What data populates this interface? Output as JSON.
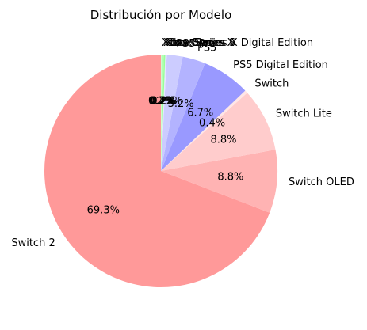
{
  "chart_data": {
    "type": "pie",
    "title": "Distribución por Modelo",
    "start_angle_deg": 90,
    "direction": "counterclockwise",
    "slices": [
      {
        "label": "Switch 2",
        "percent": 69.3,
        "pct_text": "69.3%",
        "color": "#ff9999"
      },
      {
        "label": "Switch OLED",
        "percent": 8.8,
        "pct_text": "8.8%",
        "color": "#ffb3b3"
      },
      {
        "label": "Switch Lite",
        "percent": 8.8,
        "pct_text": "8.8%",
        "color": "#ffcccc"
      },
      {
        "label": "Switch",
        "percent": 0.4,
        "pct_text": "0.4%",
        "color": "#ffe6e6"
      },
      {
        "label": "PS5 Digital Edition",
        "percent": 6.7,
        "pct_text": "6.7%",
        "color": "#9999ff"
      },
      {
        "label": "PS5",
        "percent": 3.2,
        "pct_text": "3.2%",
        "color": "#b3b3ff"
      },
      {
        "label": "PS5 Pro",
        "percent": 2.2,
        "pct_text": "2.2%",
        "color": "#ccccff"
      },
      {
        "label": "Xbox Series X Digital Edition",
        "percent": 0.2,
        "pct_text": "0.2%",
        "color": "#e6e6ff"
      },
      {
        "label": "Xbox Series S",
        "percent": 0.2,
        "pct_text": "0.2%",
        "color": "#99ff99"
      },
      {
        "label": "Xbox Series X",
        "percent": 0.2,
        "pct_text": "0.2%",
        "color": "#b3ffb3"
      },
      {
        "label": "Xbox One",
        "percent": 0.2,
        "pct_text": "0.2%",
        "color": "#ccffcc"
      }
    ]
  }
}
